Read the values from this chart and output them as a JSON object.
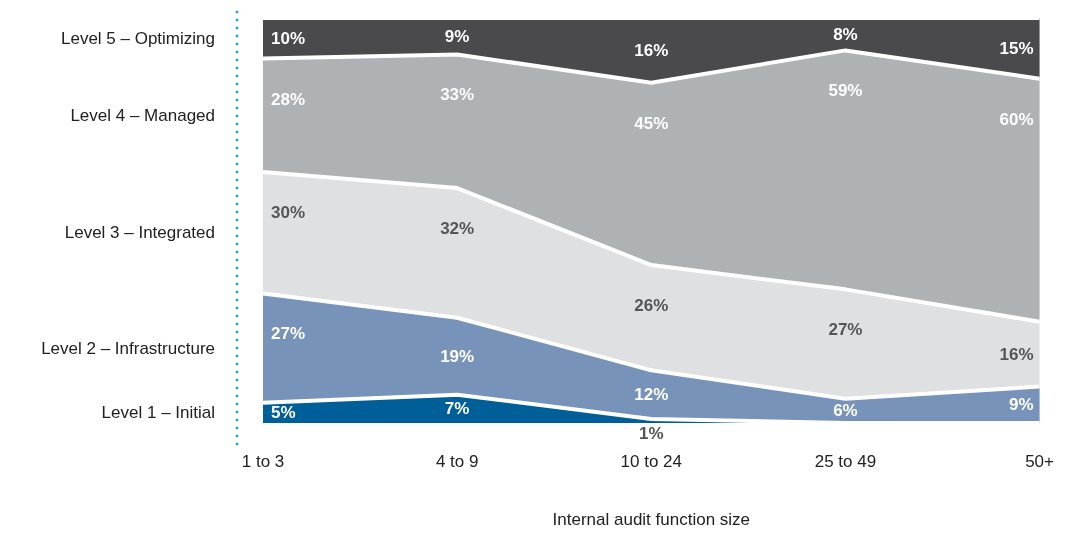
{
  "chart_data": {
    "type": "area",
    "stacked": true,
    "xlabel": "Internal audit function size",
    "categories": [
      "1 to 3",
      "4 to 9",
      "10 to 24",
      "25 to 49",
      "50+"
    ],
    "legend": false,
    "grid": false,
    "tick_labels": "x",
    "series": [
      {
        "name": "Level 1 – Initial",
        "color": "#005f99",
        "values": [
          5,
          7,
          1,
          0,
          0
        ],
        "value_labels": [
          "5%",
          "7%",
          "1%",
          null,
          null
        ]
      },
      {
        "name": "Level 2 – Infrastructure",
        "color": "#7893b9",
        "values": [
          27,
          19,
          12,
          6,
          9
        ],
        "value_labels": [
          "27%",
          "19%",
          "12%",
          "6%",
          "9%"
        ]
      },
      {
        "name": "Level 3 – Integrated",
        "color": "#dfe0e2",
        "values": [
          30,
          32,
          26,
          27,
          16
        ],
        "value_labels": [
          "30%",
          "32%",
          "26%",
          "27%",
          "16%"
        ]
      },
      {
        "name": "Level 4 – Managed",
        "color": "#afb2b5",
        "values": [
          28,
          33,
          45,
          59,
          60
        ],
        "value_labels": [
          "28%",
          "33%",
          "45%",
          "59%",
          "60%"
        ]
      },
      {
        "name": "Level 5 – Optimizing",
        "color": "#4a4a4c",
        "values": [
          10,
          9,
          16,
          8,
          15
        ],
        "value_labels": [
          "10%",
          "9%",
          "16%",
          "8%",
          "15%"
        ]
      }
    ]
  }
}
